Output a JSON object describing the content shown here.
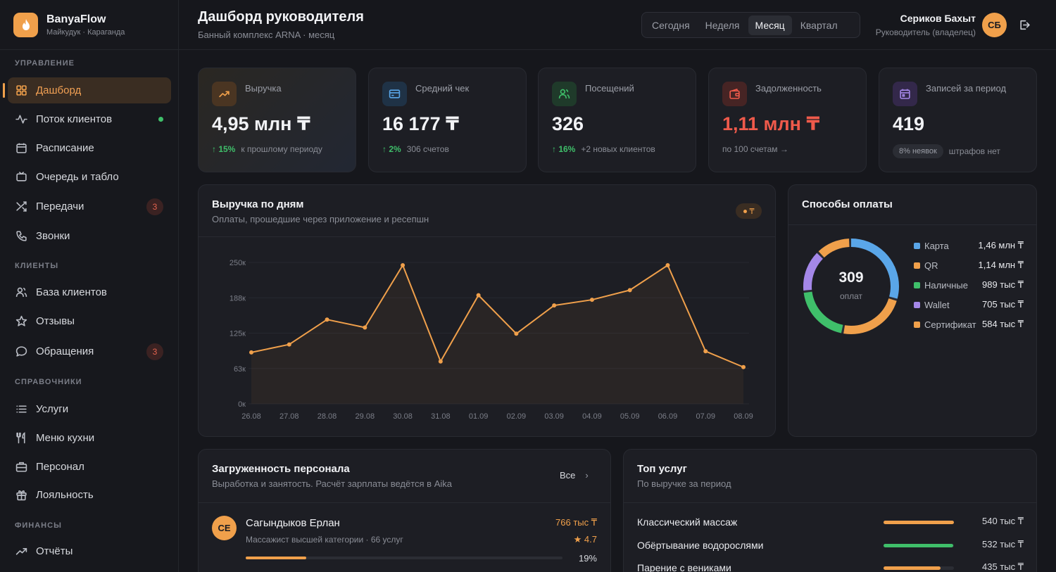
{
  "brand": {
    "name": "BanyaFlow",
    "sub": "Майкудук · Караганда"
  },
  "sidebar": {
    "sections": [
      {
        "label": "УПРАВЛЕНИЕ"
      },
      {
        "label": "КЛИЕНТЫ"
      },
      {
        "label": "СПРАВОЧНИКИ"
      },
      {
        "label": "ФИНАНСЫ"
      }
    ],
    "items": [
      {
        "label": "Дашборд",
        "icon": "grid-icon"
      },
      {
        "label": "Поток клиентов",
        "icon": "activity-icon"
      },
      {
        "label": "Расписание",
        "icon": "calendar-icon"
      },
      {
        "label": "Очередь и табло",
        "icon": "tv-icon"
      },
      {
        "label": "Передачи",
        "icon": "shuffle-icon",
        "badge": "3"
      },
      {
        "label": "Звонки",
        "icon": "phone-icon"
      },
      {
        "label": "База клиентов",
        "icon": "users-icon"
      },
      {
        "label": "Отзывы",
        "icon": "star-icon"
      },
      {
        "label": "Обращения",
        "icon": "message-icon",
        "badge": "3"
      },
      {
        "label": "Услуги",
        "icon": "list-icon"
      },
      {
        "label": "Меню кухни",
        "icon": "utensils-icon"
      },
      {
        "label": "Персонал",
        "icon": "briefcase-icon"
      },
      {
        "label": "Лояльность",
        "icon": "gift-icon"
      },
      {
        "label": "Отчёты",
        "icon": "trending-icon"
      }
    ]
  },
  "header": {
    "title": "Дашборд руководителя",
    "subtitle": "Банный комплекс ARNA · месяц",
    "periods": [
      "Сегодня",
      "Неделя",
      "Месяц",
      "Квартал"
    ],
    "active_period": "Месяц",
    "user_name": "Сериков Бахыт",
    "user_role": "Руководитель (владелец)",
    "avatar": "СБ"
  },
  "kpis": [
    {
      "label": "Выручка",
      "value": "4,95 млн ₸",
      "delta": "↑ 15%",
      "note": "к прошлому периоду",
      "icon": "trend-up-icon",
      "accent": "#f0a04b"
    },
    {
      "label": "Средний чек",
      "value": "16 177 ₸",
      "delta": "↑ 2%",
      "note": "306 счетов",
      "icon": "card-icon",
      "accent": "#5aa6e8"
    },
    {
      "label": "Посещений",
      "value": "326",
      "delta": "↑ 16%",
      "note": "+2 новых клиентов",
      "icon": "users-icon",
      "accent": "#3fbf6a"
    },
    {
      "label": "Задолженность",
      "value": "1,11 млн ₸",
      "note": "по 100 счетам →",
      "icon": "wallet-icon",
      "accent": "#ef5a4b"
    },
    {
      "label": "Записей за период",
      "value": "419",
      "pill": "8% неявок",
      "note": "штрафов нет",
      "icon": "calendar-icon",
      "accent": "#a487e8"
    }
  ],
  "revenue_panel": {
    "title": "Выручка по дням",
    "subtitle": "Оплаты, прошедшие через приложение и ресепшн",
    "chip": "₸"
  },
  "chart_data": {
    "type": "line",
    "title": "Выручка по дням",
    "categories": [
      "26.08",
      "27.08",
      "28.08",
      "29.08",
      "30.08",
      "31.08",
      "01.09",
      "02.09",
      "03.09",
      "04.09",
      "05.09",
      "06.09",
      "07.09",
      "08.09"
    ],
    "values": [
      91000,
      105000,
      149000,
      135000,
      245000,
      75000,
      192000,
      124000,
      174000,
      184000,
      201000,
      245000,
      93000,
      65000
    ],
    "ylim": [
      0,
      250000
    ],
    "yticks": [
      "0к",
      "63к",
      "125к",
      "188к",
      "250к"
    ],
    "grid": true,
    "color": "#f0a04b"
  },
  "payments": {
    "title": "Способы оплаты",
    "total": "309",
    "total_label": "оплат",
    "methods": [
      {
        "name": "Карта",
        "value": "1,46 млн ₸",
        "amount": 1460000,
        "color": "#5aa6e8"
      },
      {
        "name": "QR",
        "value": "1,14 млн ₸",
        "amount": 1140000,
        "color": "#f0a04b"
      },
      {
        "name": "Наличные",
        "value": "989 тыс ₸",
        "amount": 989000,
        "color": "#3fbf6a"
      },
      {
        "name": "Wallet",
        "value": "705 тыс ₸",
        "amount": 705000,
        "color": "#a487e8"
      },
      {
        "name": "Сертификат",
        "value": "584 тыс ₸",
        "amount": 584000,
        "color": "#f0a04b"
      }
    ]
  },
  "staff_panel": {
    "title": "Загруженность персонала",
    "subtitle": "Выработка и занятость. Расчёт зарплаты ведётся в Aika",
    "all_label": "Все",
    "staff": [
      {
        "initials": "СЕ",
        "name": "Сагындыков Ерлан",
        "role": "Массажист высшей категории · 66 услуг",
        "amount": "766 тыс ₸",
        "rating": "★ 4.7",
        "load_pct": "19%",
        "load": 0.19
      }
    ]
  },
  "services_panel": {
    "title": "Топ услуг",
    "subtitle": "По выручке за период",
    "services": [
      {
        "name": "Классический массаж",
        "value": "540 тыс ₸",
        "share": 1.0,
        "color": "#f0a04b"
      },
      {
        "name": "Обёртывание водорослями",
        "value": "532 тыс ₸",
        "share": 0.985,
        "color": "#3fbf6a"
      },
      {
        "name": "Парение с вениками",
        "value": "435 тыс ₸",
        "share": 0.805,
        "color": "#f0a04b"
      }
    ]
  }
}
